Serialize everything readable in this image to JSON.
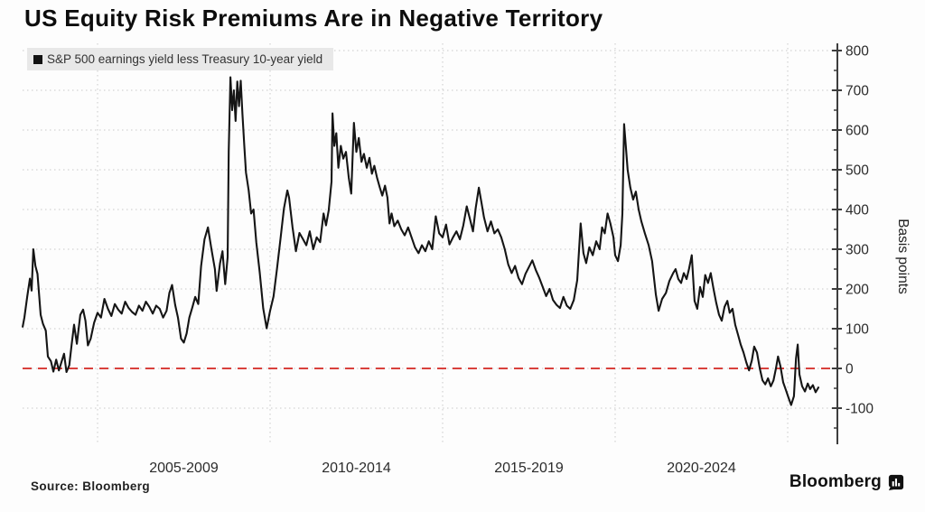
{
  "title": "US Equity Risk Premiums Are in Negative Territory",
  "legend": {
    "swatch_color": "#111111",
    "label": "S&P 500 earnings yield less Treasury 10-year yield"
  },
  "source": "Source: Bloomberg",
  "brand": {
    "name": "Bloomberg"
  },
  "colors": {
    "line": "#151515",
    "zero_line": "#d9413d",
    "grid": "#c9c9c9",
    "axis": "#3d3d3d",
    "tick_text": "#2b2b2b"
  },
  "chart_data": {
    "type": "line",
    "title": "US Equity Risk Premiums Are in Negative Territory",
    "legend_entries": [
      "S&P 500 earnings yield less Treasury 10-year yield"
    ],
    "legend_position": "top-left",
    "xlabel": "",
    "ylabel": "Basis points",
    "x_unit": "year",
    "ylim": [
      -190,
      813
    ],
    "yticks": [
      800,
      700,
      600,
      500,
      400,
      300,
      200,
      100,
      0,
      -100
    ],
    "minor_ytick_step": 50,
    "grid": true,
    "x_gridline_years": [
      2005,
      2010,
      2015,
      2020,
      2025
    ],
    "xtick_labels": [
      "2005-2009",
      "2010-2014",
      "2015-2019",
      "2020-2024"
    ],
    "xtick_label_center_years": [
      2007.5,
      2012.5,
      2017.5,
      2022.5
    ],
    "zero_line": {
      "value": 0,
      "style": "dashed",
      "color": "#d9413d"
    },
    "series": [
      {
        "name": "S&P 500 earnings yield less Treasury 10-year yield",
        "points": [
          [
            2002.83,
            105
          ],
          [
            2002.88,
            128
          ],
          [
            2002.96,
            180
          ],
          [
            2003.04,
            226
          ],
          [
            2003.09,
            196
          ],
          [
            2003.14,
            300
          ],
          [
            2003.2,
            258
          ],
          [
            2003.26,
            238
          ],
          [
            2003.35,
            135
          ],
          [
            2003.42,
            112
          ],
          [
            2003.5,
            95
          ],
          [
            2003.56,
            30
          ],
          [
            2003.65,
            18
          ],
          [
            2003.72,
            -8
          ],
          [
            2003.8,
            22
          ],
          [
            2003.88,
            -5
          ],
          [
            2003.95,
            15
          ],
          [
            2004.03,
            37
          ],
          [
            2004.1,
            -9
          ],
          [
            2004.18,
            8
          ],
          [
            2004.25,
            60
          ],
          [
            2004.32,
            110
          ],
          [
            2004.4,
            62
          ],
          [
            2004.5,
            135
          ],
          [
            2004.58,
            148
          ],
          [
            2004.65,
            120
          ],
          [
            2004.72,
            58
          ],
          [
            2004.8,
            75
          ],
          [
            2004.9,
            115
          ],
          [
            2005.0,
            140
          ],
          [
            2005.1,
            128
          ],
          [
            2005.2,
            175
          ],
          [
            2005.3,
            150
          ],
          [
            2005.4,
            132
          ],
          [
            2005.5,
            162
          ],
          [
            2005.6,
            148
          ],
          [
            2005.7,
            138
          ],
          [
            2005.8,
            168
          ],
          [
            2005.9,
            152
          ],
          [
            2006.0,
            142
          ],
          [
            2006.1,
            135
          ],
          [
            2006.2,
            158
          ],
          [
            2006.3,
            145
          ],
          [
            2006.4,
            168
          ],
          [
            2006.5,
            155
          ],
          [
            2006.6,
            138
          ],
          [
            2006.7,
            158
          ],
          [
            2006.8,
            150
          ],
          [
            2006.9,
            128
          ],
          [
            2007.0,
            145
          ],
          [
            2007.08,
            190
          ],
          [
            2007.16,
            210
          ],
          [
            2007.25,
            160
          ],
          [
            2007.33,
            128
          ],
          [
            2007.42,
            75
          ],
          [
            2007.5,
            65
          ],
          [
            2007.58,
            88
          ],
          [
            2007.66,
            128
          ],
          [
            2007.75,
            155
          ],
          [
            2007.83,
            180
          ],
          [
            2007.92,
            162
          ],
          [
            2008.0,
            257
          ],
          [
            2008.1,
            325
          ],
          [
            2008.2,
            355
          ],
          [
            2008.3,
            300
          ],
          [
            2008.4,
            250
          ],
          [
            2008.45,
            195
          ],
          [
            2008.55,
            265
          ],
          [
            2008.62,
            295
          ],
          [
            2008.7,
            212
          ],
          [
            2008.77,
            280
          ],
          [
            2008.8,
            546
          ],
          [
            2008.85,
            733
          ],
          [
            2008.9,
            650
          ],
          [
            2008.95,
            700
          ],
          [
            2009.0,
            623
          ],
          [
            2009.05,
            722
          ],
          [
            2009.1,
            660
          ],
          [
            2009.15,
            724
          ],
          [
            2009.2,
            640
          ],
          [
            2009.25,
            562
          ],
          [
            2009.3,
            493
          ],
          [
            2009.38,
            448
          ],
          [
            2009.45,
            390
          ],
          [
            2009.52,
            400
          ],
          [
            2009.6,
            318
          ],
          [
            2009.7,
            242
          ],
          [
            2009.8,
            151
          ],
          [
            2009.9,
            101
          ],
          [
            2010.0,
            145
          ],
          [
            2010.1,
            181
          ],
          [
            2010.2,
            250
          ],
          [
            2010.3,
            326
          ],
          [
            2010.4,
            402
          ],
          [
            2010.5,
            448
          ],
          [
            2010.55,
            430
          ],
          [
            2010.65,
            356
          ],
          [
            2010.75,
            295
          ],
          [
            2010.85,
            341
          ],
          [
            2010.95,
            326
          ],
          [
            2011.05,
            310
          ],
          [
            2011.15,
            345
          ],
          [
            2011.25,
            300
          ],
          [
            2011.35,
            330
          ],
          [
            2011.45,
            318
          ],
          [
            2011.55,
            390
          ],
          [
            2011.62,
            360
          ],
          [
            2011.7,
            398
          ],
          [
            2011.78,
            470
          ],
          [
            2011.81,
            642
          ],
          [
            2011.86,
            560
          ],
          [
            2011.92,
            592
          ],
          [
            2011.98,
            505
          ],
          [
            2012.05,
            560
          ],
          [
            2012.12,
            528
          ],
          [
            2012.2,
            545
          ],
          [
            2012.28,
            480
          ],
          [
            2012.35,
            440
          ],
          [
            2012.43,
            618
          ],
          [
            2012.5,
            545
          ],
          [
            2012.57,
            580
          ],
          [
            2012.65,
            520
          ],
          [
            2012.72,
            540
          ],
          [
            2012.8,
            505
          ],
          [
            2012.88,
            530
          ],
          [
            2012.95,
            490
          ],
          [
            2013.02,
            510
          ],
          [
            2013.1,
            480
          ],
          [
            2013.18,
            455
          ],
          [
            2013.25,
            435
          ],
          [
            2013.33,
            460
          ],
          [
            2013.4,
            430
          ],
          [
            2013.46,
            365
          ],
          [
            2013.52,
            390
          ],
          [
            2013.6,
            358
          ],
          [
            2013.7,
            372
          ],
          [
            2013.8,
            350
          ],
          [
            2013.9,
            335
          ],
          [
            2014.0,
            355
          ],
          [
            2014.1,
            330
          ],
          [
            2014.2,
            305
          ],
          [
            2014.3,
            290
          ],
          [
            2014.4,
            310
          ],
          [
            2014.5,
            295
          ],
          [
            2014.6,
            320
          ],
          [
            2014.7,
            300
          ],
          [
            2014.8,
            383
          ],
          [
            2014.9,
            340
          ],
          [
            2015.0,
            330
          ],
          [
            2015.1,
            362
          ],
          [
            2015.2,
            312
          ],
          [
            2015.3,
            330
          ],
          [
            2015.4,
            345
          ],
          [
            2015.5,
            325
          ],
          [
            2015.6,
            360
          ],
          [
            2015.7,
            408
          ],
          [
            2015.78,
            380
          ],
          [
            2015.88,
            345
          ],
          [
            2015.96,
            405
          ],
          [
            2016.05,
            455
          ],
          [
            2016.12,
            420
          ],
          [
            2016.2,
            380
          ],
          [
            2016.3,
            345
          ],
          [
            2016.4,
            370
          ],
          [
            2016.5,
            340
          ],
          [
            2016.6,
            350
          ],
          [
            2016.7,
            330
          ],
          [
            2016.8,
            300
          ],
          [
            2016.9,
            262
          ],
          [
            2017.0,
            240
          ],
          [
            2017.1,
            258
          ],
          [
            2017.2,
            228
          ],
          [
            2017.3,
            212
          ],
          [
            2017.4,
            238
          ],
          [
            2017.5,
            255
          ],
          [
            2017.6,
            272
          ],
          [
            2017.7,
            248
          ],
          [
            2017.8,
            228
          ],
          [
            2017.9,
            205
          ],
          [
            2018.0,
            182
          ],
          [
            2018.1,
            200
          ],
          [
            2018.2,
            172
          ],
          [
            2018.3,
            160
          ],
          [
            2018.4,
            152
          ],
          [
            2018.5,
            180
          ],
          [
            2018.6,
            158
          ],
          [
            2018.7,
            150
          ],
          [
            2018.8,
            172
          ],
          [
            2018.9,
            222
          ],
          [
            2019.0,
            365
          ],
          [
            2019.08,
            290
          ],
          [
            2019.16,
            265
          ],
          [
            2019.25,
            305
          ],
          [
            2019.35,
            285
          ],
          [
            2019.45,
            320
          ],
          [
            2019.55,
            300
          ],
          [
            2019.62,
            355
          ],
          [
            2019.7,
            340
          ],
          [
            2019.78,
            390
          ],
          [
            2019.86,
            365
          ],
          [
            2019.95,
            330
          ],
          [
            2020.0,
            285
          ],
          [
            2020.08,
            270
          ],
          [
            2020.16,
            310
          ],
          [
            2020.21,
            390
          ],
          [
            2020.26,
            615
          ],
          [
            2020.31,
            560
          ],
          [
            2020.36,
            500
          ],
          [
            2020.44,
            455
          ],
          [
            2020.52,
            425
          ],
          [
            2020.6,
            445
          ],
          [
            2020.68,
            400
          ],
          [
            2020.76,
            370
          ],
          [
            2020.86,
            340
          ],
          [
            2020.97,
            310
          ],
          [
            2021.07,
            270
          ],
          [
            2021.18,
            185
          ],
          [
            2021.26,
            145
          ],
          [
            2021.36,
            175
          ],
          [
            2021.47,
            190
          ],
          [
            2021.57,
            220
          ],
          [
            2021.68,
            240
          ],
          [
            2021.75,
            250
          ],
          [
            2021.83,
            225
          ],
          [
            2021.91,
            215
          ],
          [
            2021.99,
            240
          ],
          [
            2022.07,
            225
          ],
          [
            2022.14,
            250
          ],
          [
            2022.22,
            285
          ],
          [
            2022.3,
            170
          ],
          [
            2022.38,
            150
          ],
          [
            2022.46,
            205
          ],
          [
            2022.54,
            180
          ],
          [
            2022.61,
            235
          ],
          [
            2022.69,
            215
          ],
          [
            2022.77,
            240
          ],
          [
            2022.85,
            200
          ],
          [
            2022.93,
            165
          ],
          [
            2023.01,
            135
          ],
          [
            2023.09,
            120
          ],
          [
            2023.17,
            155
          ],
          [
            2023.25,
            170
          ],
          [
            2023.32,
            140
          ],
          [
            2023.4,
            150
          ],
          [
            2023.48,
            110
          ],
          [
            2023.56,
            85
          ],
          [
            2023.64,
            60
          ],
          [
            2023.72,
            40
          ],
          [
            2023.8,
            15
          ],
          [
            2023.88,
            -5
          ],
          [
            2023.96,
            20
          ],
          [
            2024.03,
            55
          ],
          [
            2024.11,
            40
          ],
          [
            2024.19,
            0
          ],
          [
            2024.27,
            -30
          ],
          [
            2024.35,
            -40
          ],
          [
            2024.43,
            -25
          ],
          [
            2024.51,
            -45
          ],
          [
            2024.59,
            -30
          ],
          [
            2024.66,
            0
          ],
          [
            2024.72,
            30
          ],
          [
            2024.79,
            5
          ],
          [
            2024.87,
            -35
          ],
          [
            2024.95,
            -55
          ],
          [
            2025.03,
            -75
          ],
          [
            2025.1,
            -92
          ],
          [
            2025.18,
            -70
          ],
          [
            2025.24,
            25
          ],
          [
            2025.29,
            60
          ],
          [
            2025.34,
            -15
          ],
          [
            2025.42,
            -45
          ],
          [
            2025.5,
            -58
          ],
          [
            2025.58,
            -38
          ],
          [
            2025.65,
            -52
          ],
          [
            2025.73,
            -42
          ],
          [
            2025.81,
            -60
          ],
          [
            2025.89,
            -48
          ]
        ]
      }
    ]
  }
}
